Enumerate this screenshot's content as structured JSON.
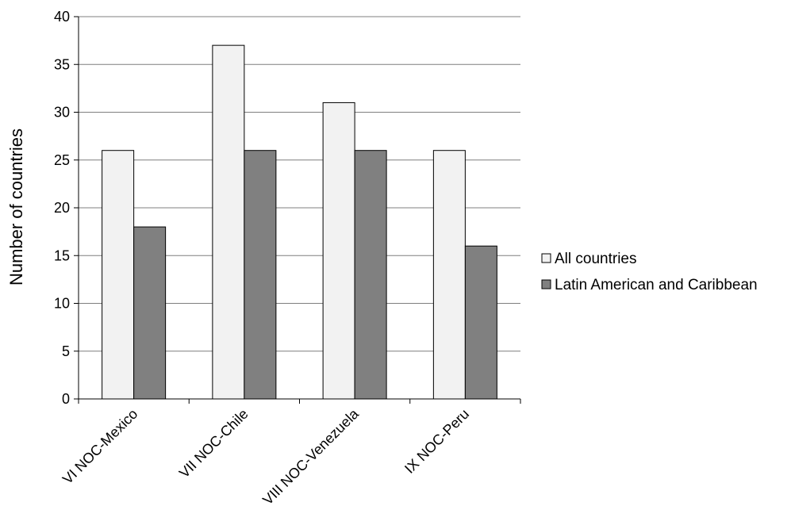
{
  "chart_data": {
    "type": "bar",
    "title": "",
    "xlabel": "",
    "ylabel": "Number of countries",
    "ylim": [
      0,
      40
    ],
    "yticks": [
      0,
      5,
      10,
      15,
      20,
      25,
      30,
      35,
      40
    ],
    "grid": true,
    "legend_position": "right",
    "categories": [
      "VI NOC-Mexico",
      "VII NOC-Chile",
      "VIII NOC-Venezuela",
      "IX NOC-Peru"
    ],
    "series": [
      {
        "name": "All countries",
        "values": [
          26,
          37,
          31,
          26
        ],
        "color": "#f2f2f2"
      },
      {
        "name": "Latin American and Caribbean",
        "values": [
          18,
          26,
          26,
          16
        ],
        "color": "#808080"
      }
    ]
  }
}
